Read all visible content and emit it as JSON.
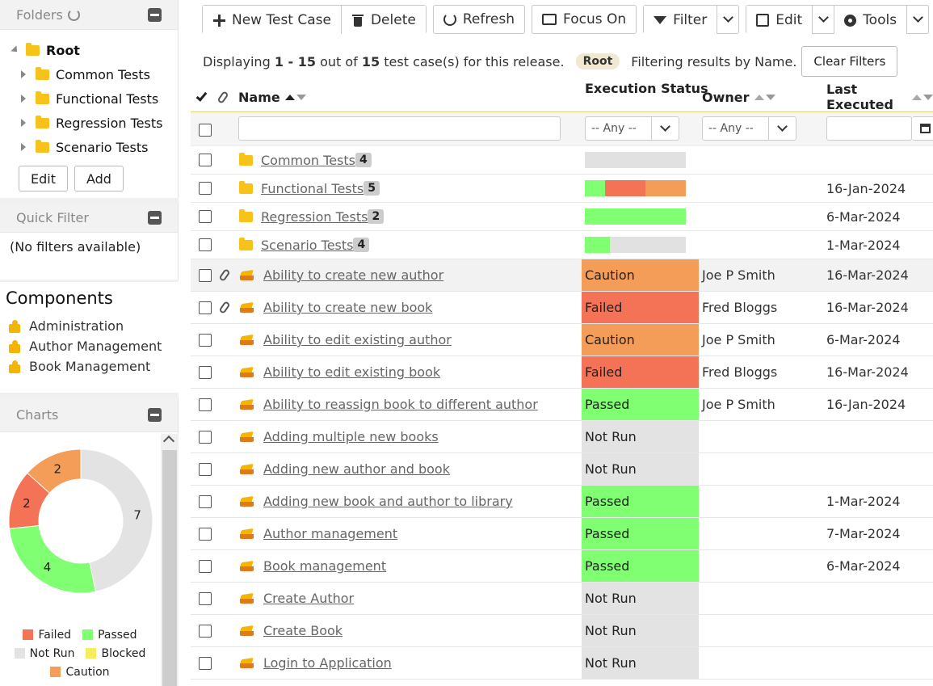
{
  "colors": {
    "passed": "#80ff72",
    "failed": "#f47256",
    "caution": "#f39d58",
    "blocked": "#f5ee5c",
    "not_run": "#e3e3e3"
  },
  "sidebar": {
    "folders": {
      "title": "Folders",
      "root": "Root",
      "children": [
        "Common Tests",
        "Functional Tests",
        "Regression Tests",
        "Scenario Tests"
      ],
      "edit_label": "Edit",
      "add_label": "Add"
    },
    "quick_filter": {
      "title": "Quick Filter",
      "empty_text": "(No filters available)"
    },
    "components": {
      "title": "Components",
      "items": [
        "Administration",
        "Author Management",
        "Book Management"
      ]
    },
    "charts": {
      "title": "Charts",
      "legend": [
        "Failed",
        "Passed",
        "Not Run",
        "Blocked",
        "Caution"
      ]
    }
  },
  "chart_data": {
    "type": "pie",
    "title": "",
    "slices": [
      {
        "label": "Not Run",
        "value": 7,
        "color": "#e3e3e3"
      },
      {
        "label": "Passed",
        "value": 4,
        "color": "#80ff72"
      },
      {
        "label": "Failed",
        "value": 2,
        "color": "#f47256"
      },
      {
        "label": "Caution",
        "value": 2,
        "color": "#f39d58"
      },
      {
        "label": "Blocked",
        "value": 0,
        "color": "#f5ee5c"
      }
    ],
    "legend_position": "bottom"
  },
  "toolbar": {
    "new_label": "New Test Case",
    "delete_label": "Delete",
    "refresh_label": "Refresh",
    "focus_label": "Focus On",
    "filter_label": "Filter",
    "edit_label": "Edit",
    "tools_label": "Tools"
  },
  "info": {
    "prefix": "Displaying",
    "range": "1 - 15",
    "mid": "out of",
    "total": "15",
    "suffix": "test case(s) for this release.",
    "folder_pill": "Root",
    "filter_text": "Filtering results by Name.",
    "clear_label": "Clear Filters"
  },
  "grid": {
    "columns": {
      "name": "Name",
      "status": "Execution Status",
      "owner": "Owner",
      "last_executed": "Last Executed"
    },
    "filter": {
      "status_any": "-- Any --",
      "owner_any": "-- Any --"
    },
    "folders": [
      {
        "name": "Common Tests",
        "count": "4",
        "last": "",
        "bar": {
          "passed": 0,
          "failed": 0,
          "caution": 0
        }
      },
      {
        "name": "Functional Tests",
        "count": "5",
        "last": "16-Jan-2024",
        "bar": {
          "passed": 0.2,
          "failed": 0.4,
          "caution": 0.4
        }
      },
      {
        "name": "Regression Tests",
        "count": "2",
        "last": "6-Mar-2024",
        "bar": {
          "passed": 1,
          "failed": 0,
          "caution": 0
        }
      },
      {
        "name": "Scenario Tests",
        "count": "4",
        "last": "1-Mar-2024",
        "bar": {
          "passed": 0.25,
          "failed": 0,
          "caution": 0
        }
      }
    ],
    "cases": [
      {
        "name": "Ability to create new author",
        "status": "Caution",
        "owner": "Joe P Smith",
        "last": "16-Mar-2024",
        "attach": true,
        "highlight": true
      },
      {
        "name": "Ability to create new book",
        "status": "Failed",
        "owner": "Fred Bloggs",
        "last": "16-Mar-2024",
        "attach": true,
        "highlight": false
      },
      {
        "name": "Ability to edit existing author",
        "status": "Caution",
        "owner": "Joe P Smith",
        "last": "6-Mar-2024",
        "attach": false,
        "highlight": false
      },
      {
        "name": "Ability to edit existing book",
        "status": "Failed",
        "owner": "Fred Bloggs",
        "last": "16-Mar-2024",
        "attach": false,
        "highlight": false
      },
      {
        "name": "Ability to reassign book to different author",
        "status": "Passed",
        "owner": "Joe P Smith",
        "last": "16-Jan-2024",
        "attach": false,
        "highlight": false
      },
      {
        "name": "Adding multiple new books",
        "status": "Not Run",
        "owner": "",
        "last": "",
        "attach": false,
        "highlight": false
      },
      {
        "name": "Adding new author and book",
        "status": "Not Run",
        "owner": "",
        "last": "",
        "attach": false,
        "highlight": false
      },
      {
        "name": "Adding new book and author to library",
        "status": "Passed",
        "owner": "",
        "last": "1-Mar-2024",
        "attach": false,
        "highlight": false
      },
      {
        "name": "Author management",
        "status": "Passed",
        "owner": "",
        "last": "7-Mar-2024",
        "attach": false,
        "highlight": false
      },
      {
        "name": "Book management",
        "status": "Passed",
        "owner": "",
        "last": "6-Mar-2024",
        "attach": false,
        "highlight": false
      },
      {
        "name": "Create Author",
        "status": "Not Run",
        "owner": "",
        "last": "",
        "attach": false,
        "highlight": false
      },
      {
        "name": "Create Book",
        "status": "Not Run",
        "owner": "",
        "last": "",
        "attach": false,
        "highlight": false
      },
      {
        "name": "Login to Application",
        "status": "Not Run",
        "owner": "",
        "last": "",
        "attach": false,
        "highlight": false
      }
    ]
  }
}
